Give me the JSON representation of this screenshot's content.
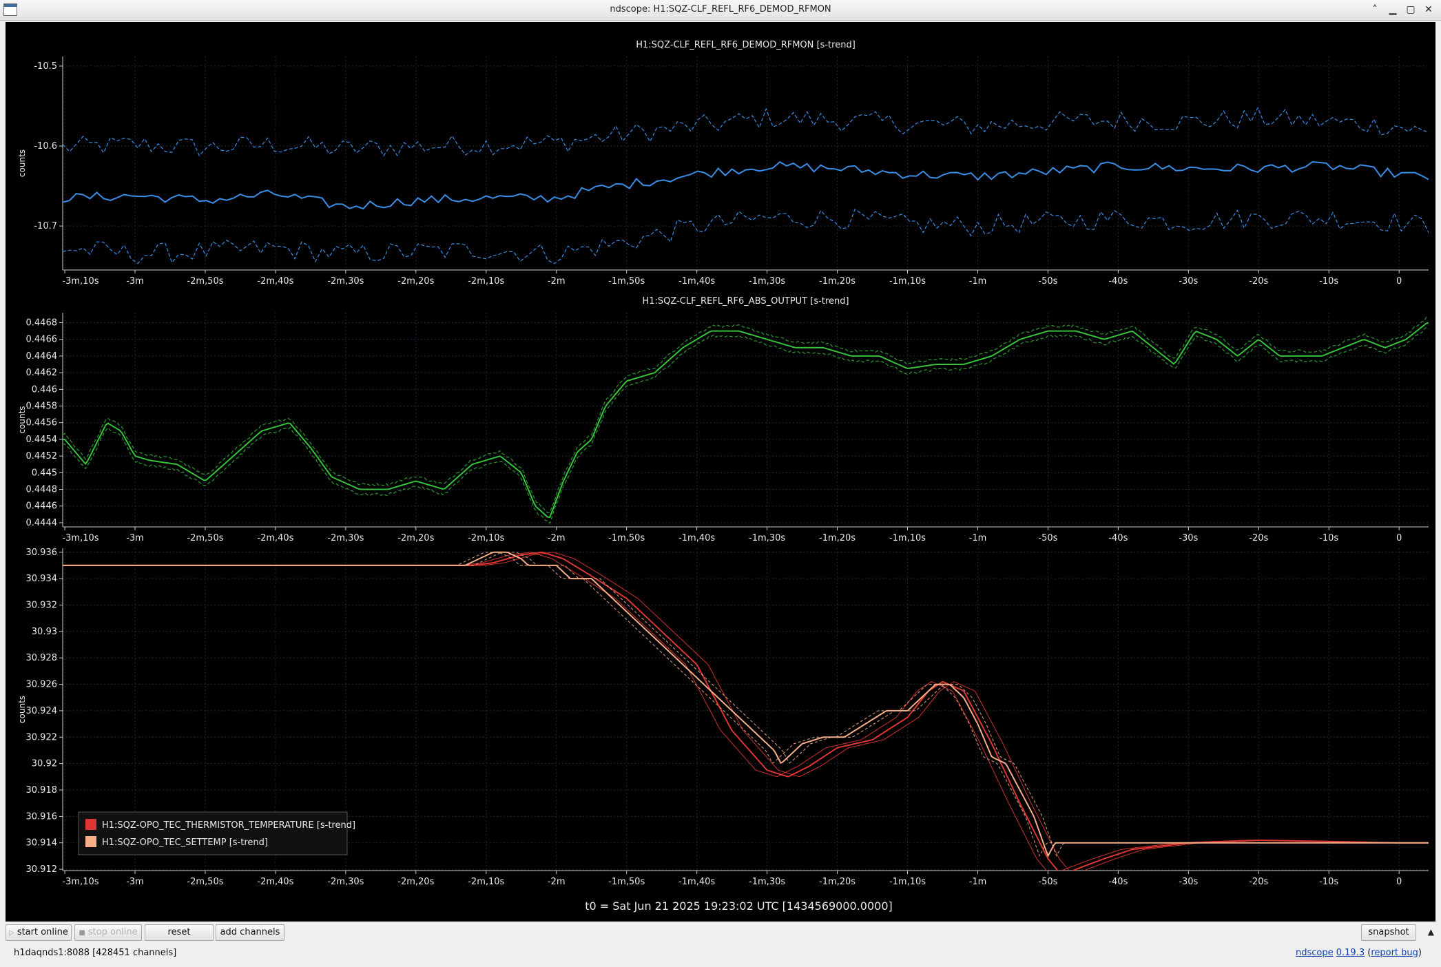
{
  "window": {
    "title": "ndscope: H1:SQZ-CLF_REFL_RF6_DEMOD_RFMON",
    "buttons": {
      "minimize_glyph": "▁",
      "restore_glyph": "▢",
      "close_glyph": "✕",
      "shade_glyph": "˄"
    }
  },
  "x_ticks": [
    "-3m,10s",
    "-3m",
    "-2m,50s",
    "-2m,40s",
    "-2m,30s",
    "-2m,20s",
    "-2m,10s",
    "-2m",
    "-1m,50s",
    "-1m,40s",
    "-1m,30s",
    "-1m,20s",
    "-1m,10s",
    "-1m",
    "-50s",
    "-40s",
    "-30s",
    "-20s",
    "-10s",
    "0"
  ],
  "x_tick_values": [
    -190,
    -180,
    -170,
    -160,
    -150,
    -140,
    -130,
    -120,
    -110,
    -100,
    -90,
    -80,
    -70,
    -60,
    -50,
    -40,
    -30,
    -20,
    -10,
    0
  ],
  "x_range": [
    -190.3,
    4.2
  ],
  "t0_label": "t0 = Sat Jun 21 2025 19:23:02 UTC [1434569000.0000]",
  "plots": [
    {
      "title": "H1:SQZ-CLF_REFL_RF6_DEMOD_RFMON [s-trend]",
      "ylabel": "counts",
      "ylim": [
        -10.755,
        -10.488
      ],
      "y_ticks": [
        "-10.5",
        "-10.6",
        "-10.7"
      ],
      "y_tick_values": [
        -10.5,
        -10.6,
        -10.7
      ],
      "color": "#3a8ee6",
      "chart_data": {
        "type": "line",
        "series": [
          {
            "role": "mean",
            "x": [
              -190,
              -180,
              -170,
              -160,
              -150,
              -140,
              -130,
              -120,
              -115,
              -110,
              -100,
              -90,
              -80,
              -70,
              -60,
              -50,
              -40,
              -30,
              -20,
              -10,
              0,
              4
            ],
            "y": [
              -10.665,
              -10.662,
              -10.668,
              -10.66,
              -10.676,
              -10.668,
              -10.665,
              -10.665,
              -10.655,
              -10.648,
              -10.635,
              -10.625,
              -10.628,
              -10.635,
              -10.638,
              -10.632,
              -10.625,
              -10.628,
              -10.628,
              -10.625,
              -10.635,
              -10.64
            ]
          },
          {
            "role": "max",
            "x": [
              -190,
              -180,
              -170,
              -160,
              -150,
              -140,
              -130,
              -120,
              -110,
              -100,
              -90,
              -80,
              -70,
              -60,
              -50,
              -40,
              -30,
              -20,
              -10,
              0,
              4
            ],
            "y": [
              -10.602,
              -10.598,
              -10.602,
              -10.598,
              -10.604,
              -10.6,
              -10.598,
              -10.596,
              -10.585,
              -10.575,
              -10.565,
              -10.568,
              -10.572,
              -10.575,
              -10.57,
              -10.568,
              -10.57,
              -10.565,
              -10.57,
              -10.575,
              -10.585
            ]
          },
          {
            "role": "min",
            "x": [
              -190,
              -180,
              -170,
              -160,
              -150,
              -140,
              -130,
              -120,
              -110,
              -100,
              -90,
              -80,
              -70,
              -60,
              -50,
              -40,
              -30,
              -20,
              -10,
              0,
              4
            ],
            "y": [
              -10.728,
              -10.735,
              -10.732,
              -10.728,
              -10.735,
              -10.732,
              -10.73,
              -10.735,
              -10.72,
              -10.7,
              -10.69,
              -10.69,
              -10.698,
              -10.7,
              -10.695,
              -10.69,
              -10.695,
              -10.69,
              -10.69,
              -10.695,
              -10.7
            ]
          }
        ]
      }
    },
    {
      "title": "H1:SQZ-CLF_REFL_RF6_ABS_OUTPUT [s-trend]",
      "ylabel": "counts",
      "ylim": [
        0.44435,
        0.44692
      ],
      "y_ticks": [
        "0.4444",
        "0.4446",
        "0.4448",
        "0.445",
        "0.4452",
        "0.4454",
        "0.4456",
        "0.4458",
        "0.446",
        "0.4462",
        "0.4464",
        "0.4466",
        "0.4468"
      ],
      "y_tick_values": [
        0.4444,
        0.4446,
        0.4448,
        0.445,
        0.4452,
        0.4454,
        0.4456,
        0.4458,
        0.446,
        0.4462,
        0.4464,
        0.4466,
        0.4468
      ],
      "color": "#35c43a",
      "chart_data": {
        "type": "line",
        "series": [
          {
            "role": "mean",
            "x": [
              -190,
              -187,
              -184,
              -182,
              -180,
              -178,
              -174,
              -170,
              -166,
              -162,
              -158,
              -155,
              -152,
              -148,
              -144,
              -140,
              -136,
              -132,
              -128,
              -125,
              -123,
              -121,
              -119,
              -117,
              -115,
              -113,
              -110,
              -106,
              -102,
              -98,
              -94,
              -90,
              -86,
              -82,
              -78,
              -74,
              -70,
              -66,
              -62,
              -58,
              -54,
              -50,
              -46,
              -42,
              -38,
              -35,
              -32,
              -29,
              -26,
              -23,
              -20,
              -17,
              -14,
              -11,
              -8,
              -5,
              -2,
              1,
              4
            ],
            "y": [
              0.4454,
              0.4451,
              0.4456,
              0.4455,
              0.4452,
              0.44515,
              0.4451,
              0.4449,
              0.4452,
              0.4455,
              0.4456,
              0.4453,
              0.44495,
              0.4448,
              0.4448,
              0.4449,
              0.4448,
              0.4451,
              0.4452,
              0.445,
              0.4446,
              0.44445,
              0.4449,
              0.44525,
              0.4454,
              0.4458,
              0.4461,
              0.4462,
              0.4465,
              0.4467,
              0.4467,
              0.4466,
              0.4465,
              0.4465,
              0.4464,
              0.4464,
              0.44625,
              0.4463,
              0.4463,
              0.4464,
              0.4466,
              0.4467,
              0.4467,
              0.4466,
              0.4467,
              0.4465,
              0.4463,
              0.4467,
              0.4466,
              0.4464,
              0.4466,
              0.4464,
              0.4464,
              0.4464,
              0.4465,
              0.4466,
              0.4465,
              0.4466,
              0.4468
            ]
          }
        ]
      }
    },
    {
      "title": "",
      "ylabel": "counts",
      "ylim": [
        30.9119,
        30.9363
      ],
      "y_ticks": [
        "30.912",
        "30.914",
        "30.916",
        "30.918",
        "30.92",
        "30.922",
        "30.924",
        "30.926",
        "30.928",
        "30.93",
        "30.932",
        "30.934",
        "30.936"
      ],
      "y_tick_values": [
        30.912,
        30.914,
        30.916,
        30.918,
        30.92,
        30.922,
        30.924,
        30.926,
        30.928,
        30.93,
        30.932,
        30.934,
        30.936
      ],
      "legend": [
        {
          "label": "H1:SQZ-OPO_TEC_THERMISTOR_TEMPERATURE [s-trend]",
          "color": "#e03535"
        },
        {
          "label": "H1:SQZ-OPO_TEC_SETTEMP [s-trend]",
          "color": "#f5b08a"
        }
      ],
      "chart_data": {
        "type": "line",
        "series": [
          {
            "name": "H1:SQZ-OPO_TEC_THERMISTOR_TEMPERATURE [s-trend]",
            "color": "#e03535",
            "x": [
              -190,
              -140,
              -132,
              -129,
              -125,
              -122,
              -119,
              -115,
              -110,
              -100,
              -95,
              -90,
              -87,
              -84,
              -80,
              -75,
              -70,
              -67,
              -65,
              -62,
              -58,
              -54,
              -50,
              -48,
              -46,
              -42,
              -38,
              -30,
              -20,
              -10,
              0,
              4
            ],
            "y": [
              30.935,
              30.935,
              30.935,
              30.9352,
              30.9358,
              30.936,
              30.9355,
              30.9342,
              30.9325,
              30.9275,
              30.9225,
              30.9195,
              30.919,
              30.9198,
              30.9212,
              30.9218,
              30.9235,
              30.9255,
              30.9262,
              30.9255,
              30.9215,
              30.917,
              30.9128,
              30.9115,
              30.912,
              30.9128,
              30.9135,
              30.914,
              30.9142,
              30.9141,
              30.914,
              30.914
            ]
          },
          {
            "name": "H1:SQZ-OPO_TEC_SETTEMP [s-trend]",
            "color": "#f5b08a",
            "x": [
              -190,
              -133,
              -131,
              -129,
              -127,
              -125,
              -124,
              -120,
              -118,
              -115,
              -113,
              -110,
              -107,
              -104,
              -101,
              -98,
              -95,
              -92,
              -89,
              -88,
              -85,
              -82,
              -79,
              -76,
              -73,
              -70,
              -68,
              -66,
              -64,
              -62,
              -60,
              -58,
              -56,
              -54,
              -52,
              -50,
              -49,
              -4,
              4
            ],
            "y": [
              30.935,
              30.935,
              30.9355,
              30.936,
              30.936,
              30.9355,
              30.935,
              30.935,
              30.934,
              30.934,
              30.933,
              30.9315,
              30.93,
              30.9285,
              30.927,
              30.9255,
              30.924,
              30.9225,
              30.921,
              30.92,
              30.9215,
              30.922,
              30.922,
              30.923,
              30.924,
              30.924,
              30.925,
              30.926,
              30.926,
              30.925,
              30.923,
              30.9205,
              30.92,
              30.918,
              30.916,
              30.913,
              30.914,
              30.914,
              30.914
            ]
          }
        ]
      }
    }
  ],
  "controls": {
    "start_online": "start online",
    "stop_online": "stop online",
    "reset": "reset",
    "add_channels": "add channels",
    "snapshot": "snapshot",
    "expand_glyph": "▲"
  },
  "status": {
    "server": "h1daqnds1:8088  [428451 channels]",
    "app_name": "ndscope",
    "version": "0.19.3",
    "report_bug": "report bug"
  }
}
